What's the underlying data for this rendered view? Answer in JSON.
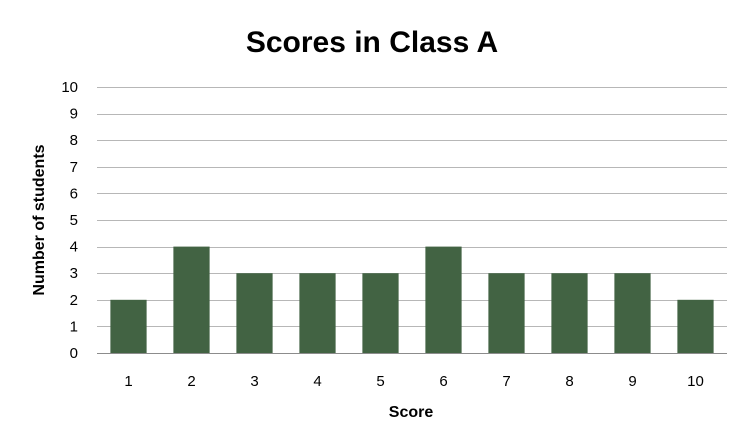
{
  "chart_data": {
    "type": "bar",
    "title": "Scores in Class A",
    "xlabel": "Score",
    "ylabel": "Number of students",
    "categories": [
      "1",
      "2",
      "3",
      "4",
      "5",
      "6",
      "7",
      "8",
      "9",
      "10"
    ],
    "values": [
      2,
      4,
      3,
      3,
      3,
      4,
      3,
      3,
      3,
      2
    ],
    "ylim": [
      0,
      10
    ],
    "yticks": [
      "0",
      "1",
      "2",
      "3",
      "4",
      "5",
      "6",
      "7",
      "8",
      "9",
      "10"
    ],
    "grid": true,
    "legend": "none",
    "colors": {
      "bar": "#426343",
      "grid": "#b7b7b7",
      "axis": "#8c8c8c"
    }
  }
}
